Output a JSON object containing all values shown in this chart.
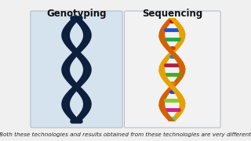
{
  "title_left": "Genotyping",
  "title_right": "Sequencing",
  "caption": "Both these technologies and results obtained from these technologies are very different",
  "bg_color": "#f0f0f0",
  "left_box_color": "#d5e3ef",
  "right_box_color": "#f2f2f2",
  "box_border": "#b0b8c0",
  "dna_dark_color": "#0d1f3c",
  "title_fontsize": 8.5,
  "caption_fontsize": 5.2,
  "strand_gold1": "#e8a000",
  "strand_gold2": "#d46000",
  "rung_colors": [
    "#cc0000",
    "#2255cc",
    "#22aa44",
    "#cc4400",
    "#2288cc",
    "#aa2244",
    "#44aa22",
    "#cc8800",
    "#2244cc",
    "#88cc22",
    "#cc2288",
    "#44ccaa"
  ]
}
